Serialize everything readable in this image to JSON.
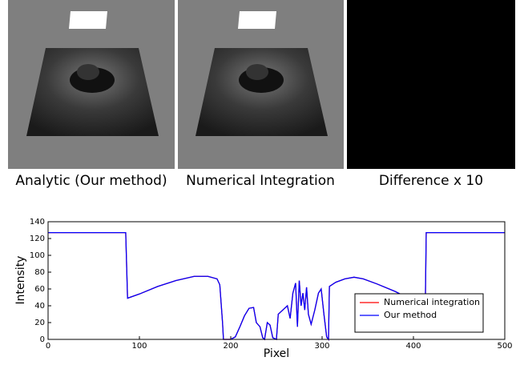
{
  "panels": [
    {
      "caption": "Analytic (Our method)"
    },
    {
      "caption": "Numerical Integration"
    },
    {
      "caption": "Difference x 10"
    }
  ],
  "chart_data": {
    "type": "line",
    "xlabel": "Pixel",
    "ylabel": "Intensity",
    "x": [
      0,
      85,
      87,
      100,
      120,
      140,
      160,
      175,
      185,
      188,
      191,
      192,
      200,
      205,
      210,
      215,
      220,
      225,
      228,
      232,
      235,
      237,
      240,
      243,
      246,
      250,
      252,
      258,
      262,
      265,
      268,
      271,
      273,
      275,
      277,
      279,
      281,
      283,
      285,
      288,
      292,
      296,
      299,
      302,
      305,
      307,
      308,
      315,
      325,
      335,
      345,
      360,
      380,
      400,
      413,
      414,
      500
    ],
    "series": [
      {
        "name": "Numerical integration",
        "color": "#ff0000",
        "values": [
          127,
          127,
          49,
          54,
          63,
          70,
          75,
          75,
          72,
          65,
          20,
          0,
          0,
          3,
          15,
          28,
          37,
          38,
          20,
          15,
          2,
          0,
          20,
          17,
          2,
          0,
          30,
          36,
          40,
          25,
          55,
          67,
          15,
          70,
          40,
          55,
          35,
          62,
          30,
          18,
          35,
          55,
          60,
          30,
          3,
          0,
          63,
          68,
          72,
          74,
          72,
          66,
          57,
          46,
          41,
          127,
          127
        ]
      },
      {
        "name": "Our method",
        "color": "#0000ff",
        "values": [
          127,
          127,
          49,
          54,
          63,
          70,
          75,
          75,
          72,
          65,
          20,
          0,
          0,
          3,
          15,
          28,
          37,
          38,
          20,
          15,
          2,
          0,
          20,
          17,
          2,
          0,
          30,
          36,
          40,
          25,
          55,
          67,
          15,
          70,
          40,
          55,
          35,
          62,
          30,
          18,
          35,
          55,
          60,
          30,
          3,
          0,
          63,
          68,
          72,
          74,
          72,
          66,
          57,
          46,
          41,
          127,
          127
        ]
      }
    ],
    "xlim": [
      0,
      500
    ],
    "xticks": [
      0,
      100,
      200,
      300,
      400,
      500
    ],
    "ylim": [
      0,
      140
    ],
    "yticks": [
      0,
      20,
      40,
      60,
      80,
      100,
      120,
      140
    ],
    "grid": false,
    "legend": "lower right"
  }
}
